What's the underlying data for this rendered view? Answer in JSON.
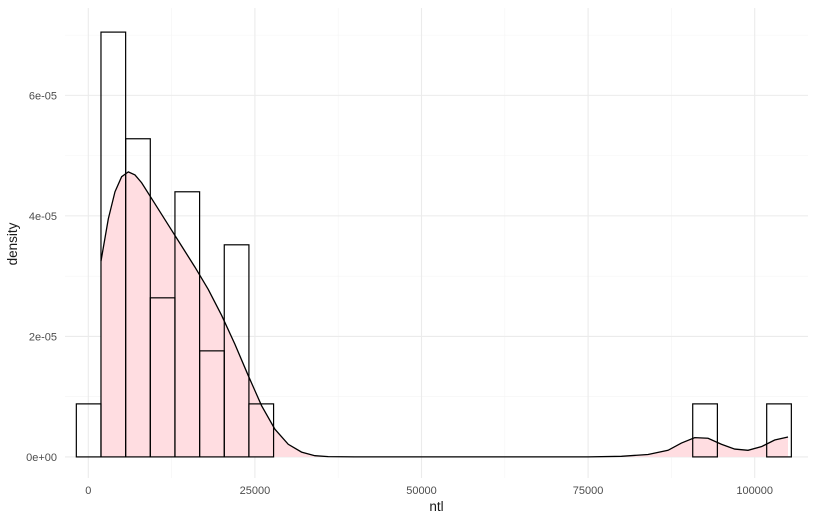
{
  "chart_data": {
    "type": "bar",
    "subtype": "histogram-with-density",
    "title": "",
    "xlabel": "ntl",
    "ylabel": "density",
    "xlim": [
      -3500,
      108000
    ],
    "ylim": [
      -3.5e-06,
      7.45e-05
    ],
    "x_ticks": [
      0,
      25000,
      50000,
      75000,
      100000
    ],
    "x_tick_labels": [
      "0",
      "25000",
      "50000",
      "75000",
      "100000"
    ],
    "y_ticks": [
      0,
      2e-05,
      4e-05,
      6e-05
    ],
    "y_tick_labels": [
      "0e+00",
      "2e-05",
      "4e-05",
      "6e-05"
    ],
    "grid": true,
    "legend": "none",
    "histogram": {
      "bin_width": 3700,
      "bins": [
        {
          "x0": -1800,
          "x1": 1900,
          "density": 8.8e-06
        },
        {
          "x0": 1900,
          "x1": 5600,
          "density": 7.05e-05
        },
        {
          "x0": 5600,
          "x1": 9300,
          "density": 5.28e-05
        },
        {
          "x0": 9300,
          "x1": 13000,
          "density": 2.64e-05
        },
        {
          "x0": 13000,
          "x1": 16700,
          "density": 4.4e-05
        },
        {
          "x0": 16700,
          "x1": 20400,
          "density": 1.76e-05
        },
        {
          "x0": 20400,
          "x1": 24100,
          "density": 3.52e-05
        },
        {
          "x0": 24100,
          "x1": 27800,
          "density": 8.8e-06
        },
        {
          "x0": 90700,
          "x1": 94400,
          "density": 8.8e-06
        },
        {
          "x0": 101800,
          "x1": 105500,
          "density": 8.8e-06
        }
      ]
    },
    "density": {
      "x": [
        1900,
        3000,
        4000,
        5000,
        6000,
        7000,
        8000,
        10000,
        12000,
        14000,
        16000,
        18000,
        20000,
        22000,
        24000,
        26000,
        28000,
        30000,
        32000,
        34000,
        36000,
        40000,
        50000,
        60000,
        70000,
        75000,
        80000,
        84000,
        87000,
        89000,
        91000,
        93000,
        95000,
        97000,
        99000,
        101000,
        103000,
        105000
      ],
      "y": [
        3.25e-05,
        3.95e-05,
        4.4e-05,
        4.65e-05,
        4.73e-05,
        4.68e-05,
        4.55e-05,
        4.2e-05,
        3.85e-05,
        3.5e-05,
        3.15e-05,
        2.78e-05,
        2.35e-05,
        1.87e-05,
        1.35e-05,
        8.5e-06,
        4.6e-06,
        2.1e-06,
        8e-07,
        2e-07,
        5e-08,
        0,
        0,
        0,
        0,
        0,
        1e-07,
        4e-07,
        1.1e-06,
        2.3e-06,
        3.2e-06,
        3.1e-06,
        2.1e-06,
        1.3e-06,
        1.1e-06,
        1.7e-06,
        2.8e-06,
        3.3e-06
      ]
    },
    "colors": {
      "density_fill": "#ffdde1",
      "bar_stroke": "#000000",
      "grid_major": "#ebebeb",
      "grid_minor": "#f4f4f4"
    }
  }
}
